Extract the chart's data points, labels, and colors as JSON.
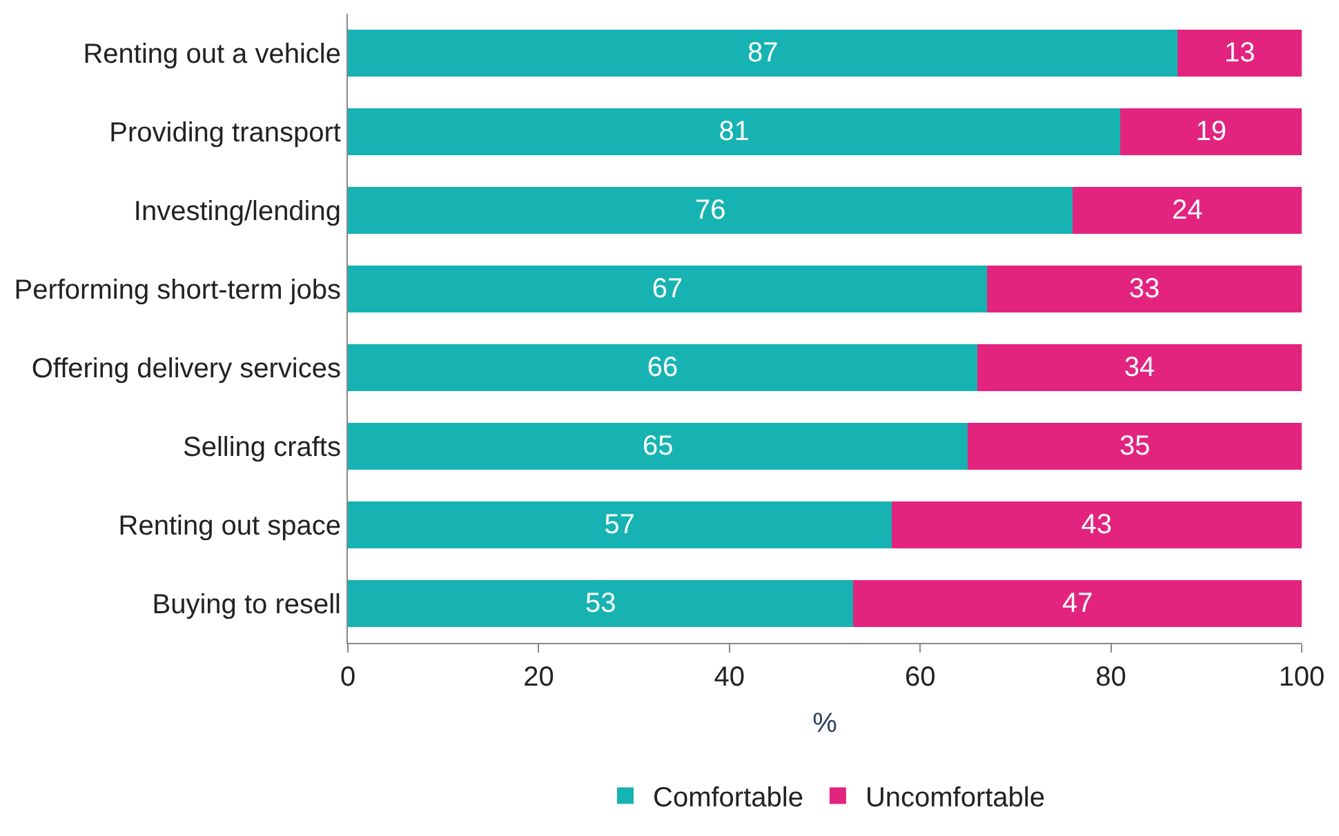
{
  "chart_data": {
    "type": "bar",
    "orientation": "horizontal",
    "stacked": true,
    "categories": [
      "Renting out a vehicle",
      "Providing transport",
      "Investing/lending",
      "Performing short-term jobs",
      "Offering delivery services",
      "Selling crafts",
      "Renting out space",
      "Buying to resell"
    ],
    "series": [
      {
        "name": "Comfortable",
        "color": "#17b3b3",
        "values": [
          87,
          81,
          76,
          67,
          66,
          65,
          57,
          53
        ]
      },
      {
        "name": "Uncomfortable",
        "color": "#e2247f",
        "values": [
          13,
          19,
          24,
          33,
          34,
          35,
          43,
          47
        ]
      }
    ],
    "xlabel": "%",
    "xlim": [
      0,
      100
    ],
    "xticks": [
      0,
      20,
      40,
      60,
      80,
      100
    ],
    "data_labels": true,
    "legend": "bottom"
  }
}
